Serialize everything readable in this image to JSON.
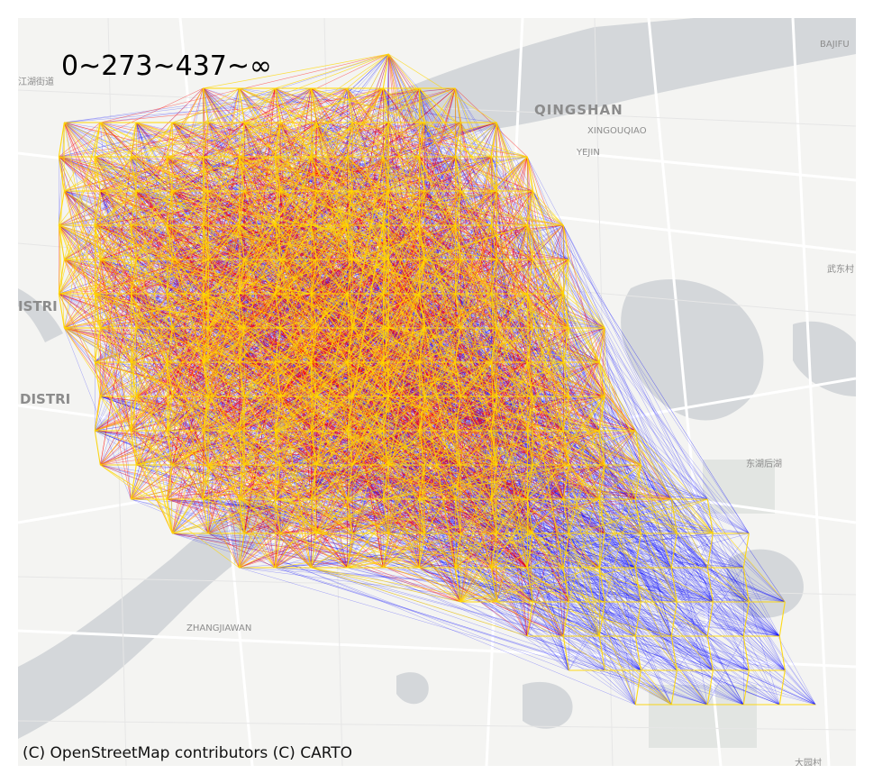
{
  "legend": {
    "break_label": "0~273~437~∞"
  },
  "attribution": "(C) OpenStreetMap contributors (C) CARTO",
  "map_labels": {
    "qingshan": "QINGSHAN",
    "xingouqiao": "XINGOUQIAO",
    "yejin": "YEJIN",
    "bajifu": "BAJIFU",
    "zhangjiawan": "ZHANGJIAWAN",
    "district_1": "ISTRI",
    "district_2": "DISTRI",
    "wuchang": "武东村",
    "donghu": "东湖后湖",
    "dacun": "大园村",
    "jiangjie": "江湖街道"
  },
  "flow_classes": [
    {
      "range": "0~273",
      "color": "#0000ff"
    },
    {
      "range": "273~437",
      "color": "#ff0000"
    },
    {
      "range": "437~∞",
      "color": "#ffd700"
    }
  ],
  "colors": {
    "water": "#d4d7da",
    "land": "#f4f4f2",
    "road": "#ffffff",
    "park": "#e2e5e2"
  }
}
